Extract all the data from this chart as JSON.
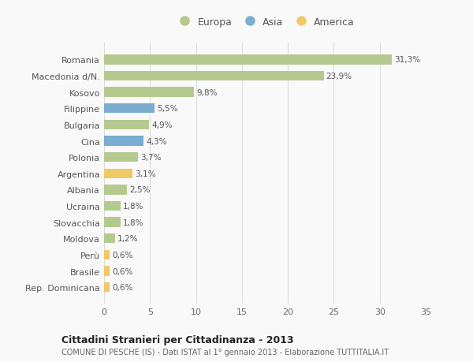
{
  "countries": [
    "Romania",
    "Macedonia d/N.",
    "Kosovo",
    "Filippine",
    "Bulgaria",
    "Cina",
    "Polonia",
    "Argentina",
    "Albania",
    "Ucraina",
    "Slovacchia",
    "Moldova",
    "Perù",
    "Brasile",
    "Rep. Dominicana"
  ],
  "values": [
    31.3,
    23.9,
    9.8,
    5.5,
    4.9,
    4.3,
    3.7,
    3.1,
    2.5,
    1.8,
    1.8,
    1.2,
    0.6,
    0.6,
    0.6
  ],
  "labels": [
    "31,3%",
    "23,9%",
    "9,8%",
    "5,5%",
    "4,9%",
    "4,3%",
    "3,7%",
    "3,1%",
    "2,5%",
    "1,8%",
    "1,8%",
    "1,2%",
    "0,6%",
    "0,6%",
    "0,6%"
  ],
  "continents": [
    "Europa",
    "Europa",
    "Europa",
    "Asia",
    "Europa",
    "Asia",
    "Europa",
    "America",
    "Europa",
    "Europa",
    "Europa",
    "Europa",
    "America",
    "America",
    "America"
  ],
  "colors": {
    "Europa": "#b5c98e",
    "Asia": "#7aadcf",
    "America": "#f0c967"
  },
  "legend_colors": {
    "Europa": "#b5c98e",
    "Asia": "#7aadcf",
    "America": "#f0c967"
  },
  "xlim": [
    0,
    35
  ],
  "xticks": [
    0,
    5,
    10,
    15,
    20,
    25,
    30,
    35
  ],
  "title": "Cittadini Stranieri per Cittadinanza - 2013",
  "subtitle": "COMUNE DI PESCHE (IS) - Dati ISTAT al 1° gennaio 2013 - Elaborazione TUTTITALIA.IT",
  "bg_color": "#f9f9f9",
  "bar_height": 0.6,
  "grid_color": "#dddddd"
}
